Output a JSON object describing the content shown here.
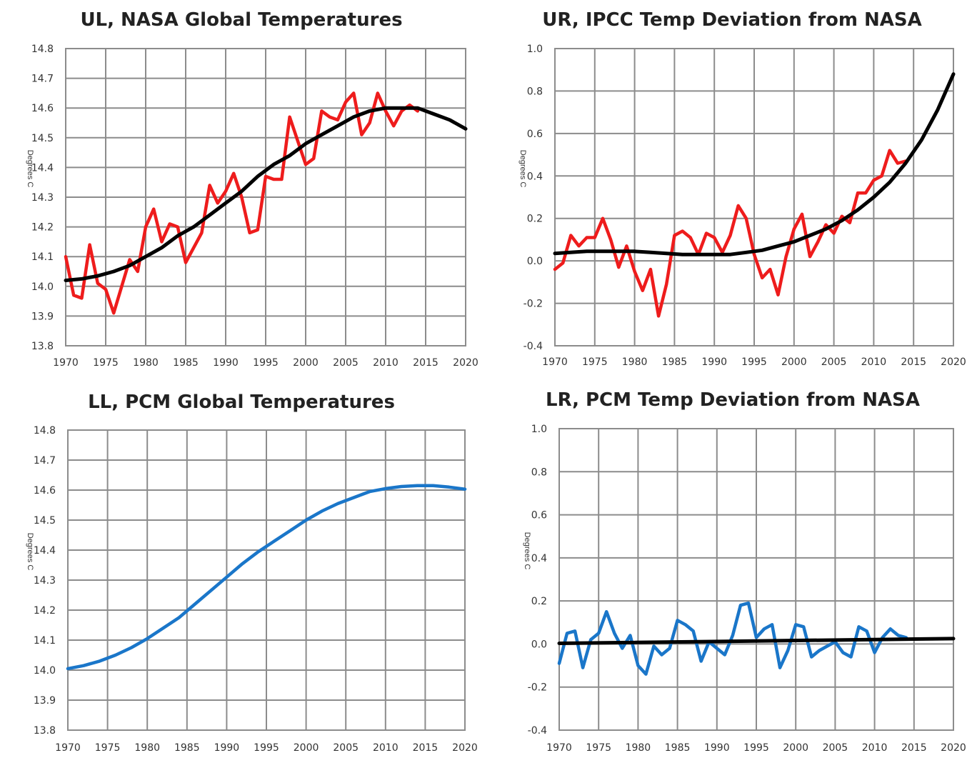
{
  "chart_data": [
    {
      "type": "line",
      "title": "UL, NASA Global Temperatures",
      "ylabel": "Degrees C",
      "xlim": [
        1970,
        2020
      ],
      "ylim": [
        13.8,
        14.8
      ],
      "x_ticks": [
        "1970",
        "1975",
        "1980",
        "1985",
        "1990",
        "1995",
        "2000",
        "2005",
        "2010",
        "2015",
        "2020"
      ],
      "y_ticks": [
        "14.8",
        "14.7",
        "14.6",
        "14.5",
        "14.4",
        "14.3",
        "14.2",
        "14.1",
        "14.0",
        "13.9",
        "13.8"
      ],
      "grid": true,
      "series": [
        {
          "color": "#ee1c1c",
          "x": [
            1970,
            1971,
            1972,
            1973,
            1974,
            1975,
            1976,
            1977,
            1978,
            1979,
            1980,
            1981,
            1982,
            1983,
            1984,
            1985,
            1986,
            1987,
            1988,
            1989,
            1990,
            1991,
            1992,
            1993,
            1994,
            1995,
            1996,
            1997,
            1998,
            1999,
            2000,
            2001,
            2002,
            2003,
            2004,
            2005,
            2006,
            2007,
            2008,
            2009,
            2010,
            2011,
            2012,
            2013,
            2014
          ],
          "y": [
            14.1,
            13.97,
            13.96,
            14.14,
            14.01,
            13.99,
            13.91,
            14.0,
            14.09,
            14.05,
            14.2,
            14.26,
            14.15,
            14.21,
            14.2,
            14.08,
            14.13,
            14.18,
            14.34,
            14.28,
            14.32,
            14.38,
            14.3,
            14.18,
            14.19,
            14.37,
            14.36,
            14.36,
            14.57,
            14.49,
            14.41,
            14.43,
            14.59,
            14.57,
            14.56,
            14.62,
            14.65,
            14.51,
            14.55,
            14.65,
            14.59,
            14.54,
            14.59,
            14.61,
            14.59
          ]
        },
        {
          "color": "#000000",
          "x": [
            1970,
            1972,
            1974,
            1976,
            1978,
            1980,
            1982,
            1984,
            1986,
            1988,
            1990,
            1992,
            1994,
            1996,
            1998,
            2000,
            2002,
            2004,
            2006,
            2008,
            2010,
            2012,
            2014,
            2016,
            2018,
            2020
          ],
          "y": [
            14.02,
            14.025,
            14.035,
            14.05,
            14.07,
            14.1,
            14.13,
            14.17,
            14.2,
            14.24,
            14.28,
            14.32,
            14.37,
            14.41,
            14.44,
            14.48,
            14.51,
            14.54,
            14.57,
            14.59,
            14.6,
            14.6,
            14.6,
            14.58,
            14.56,
            14.53
          ]
        }
      ]
    },
    {
      "type": "line",
      "title": "UR, IPCC Temp Deviation from NASA",
      "ylabel": "Degrees C",
      "xlim": [
        1970,
        2020
      ],
      "ylim": [
        -0.4,
        1.0
      ],
      "x_ticks": [
        "1970",
        "1975",
        "1980",
        "1985",
        "1990",
        "1995",
        "2000",
        "2005",
        "2010",
        "2015",
        "2020"
      ],
      "y_ticks": [
        "1.0",
        "0.8",
        "0.6",
        "0.4",
        "0.2",
        "0.0",
        "-0.2",
        "-0.4"
      ],
      "grid": true,
      "series": [
        {
          "color": "#ee1c1c",
          "x": [
            1970,
            1971,
            1972,
            1973,
            1974,
            1975,
            1976,
            1977,
            1978,
            1979,
            1980,
            1981,
            1982,
            1983,
            1984,
            1985,
            1986,
            1987,
            1988,
            1989,
            1990,
            1991,
            1992,
            1993,
            1994,
            1995,
            1996,
            1997,
            1998,
            1999,
            2000,
            2001,
            2002,
            2003,
            2004,
            2005,
            2006,
            2007,
            2008,
            2009,
            2010,
            2011,
            2012,
            2013,
            2014
          ],
          "y": [
            -0.04,
            -0.01,
            0.12,
            0.07,
            0.11,
            0.11,
            0.2,
            0.1,
            -0.03,
            0.07,
            -0.05,
            -0.14,
            -0.04,
            -0.26,
            -0.11,
            0.12,
            0.14,
            0.11,
            0.03,
            0.13,
            0.11,
            0.04,
            0.12,
            0.26,
            0.2,
            0.03,
            -0.08,
            -0.04,
            -0.16,
            0.02,
            0.15,
            0.22,
            0.02,
            0.09,
            0.17,
            0.13,
            0.21,
            0.18,
            0.32,
            0.32,
            0.38,
            0.4,
            0.52,
            0.46,
            0.47
          ]
        },
        {
          "color": "#000000",
          "x": [
            1970,
            1972,
            1974,
            1976,
            1978,
            1980,
            1982,
            1984,
            1986,
            1988,
            1990,
            1992,
            1994,
            1996,
            1998,
            2000,
            2002,
            2004,
            2006,
            2008,
            2010,
            2012,
            2014,
            2016,
            2018,
            2020
          ],
          "y": [
            0.035,
            0.04,
            0.045,
            0.045,
            0.045,
            0.045,
            0.04,
            0.035,
            0.03,
            0.03,
            0.03,
            0.03,
            0.04,
            0.05,
            0.07,
            0.09,
            0.12,
            0.15,
            0.19,
            0.24,
            0.3,
            0.37,
            0.46,
            0.57,
            0.71,
            0.88
          ]
        }
      ]
    },
    {
      "type": "line",
      "title": "LL, PCM Global Temperatures",
      "ylabel": "Degrees C",
      "xlim": [
        1970,
        2020
      ],
      "ylim": [
        13.8,
        14.8
      ],
      "x_ticks": [
        "1970",
        "1975",
        "1980",
        "1985",
        "1990",
        "1995",
        "2000",
        "2005",
        "2010",
        "2015",
        "2020"
      ],
      "y_ticks": [
        "14.8",
        "14.7",
        "14.6",
        "14.5",
        "14.4",
        "14.3",
        "14.2",
        "14.1",
        "14.0",
        "13.9",
        "13.8"
      ],
      "grid": true,
      "series": [
        {
          "color": "#1a76c9",
          "x": [
            1970,
            1972,
            1974,
            1976,
            1978,
            1980,
            1982,
            1984,
            1986,
            1988,
            1990,
            1992,
            1994,
            1996,
            1998,
            2000,
            2002,
            2004,
            2006,
            2008,
            2010,
            2012,
            2014,
            2016,
            2018,
            2020
          ],
          "y": [
            14.005,
            14.015,
            14.03,
            14.05,
            14.075,
            14.105,
            14.14,
            14.175,
            14.22,
            14.265,
            14.31,
            14.355,
            14.395,
            14.43,
            14.465,
            14.5,
            14.53,
            14.555,
            14.575,
            14.595,
            14.605,
            14.612,
            14.615,
            14.615,
            14.61,
            14.603
          ]
        }
      ]
    },
    {
      "type": "line",
      "title": "LR, PCM Temp Deviation from NASA",
      "ylabel": "Degrees C",
      "xlim": [
        1970,
        2020
      ],
      "ylim": [
        -0.4,
        1.0
      ],
      "x_ticks": [
        "1970",
        "1975",
        "1980",
        "1985",
        "1990",
        "1995",
        "2000",
        "2005",
        "2010",
        "2015",
        "2020"
      ],
      "y_ticks": [
        "1.0",
        "0.8",
        "0.6",
        "0.4",
        "0.2",
        "0.0",
        "-0.2",
        "-0.4"
      ],
      "grid": true,
      "series": [
        {
          "color": "#1a76c9",
          "x": [
            1970,
            1971,
            1972,
            1973,
            1974,
            1975,
            1976,
            1977,
            1978,
            1979,
            1980,
            1981,
            1982,
            1983,
            1984,
            1985,
            1986,
            1987,
            1988,
            1989,
            1990,
            1991,
            1992,
            1993,
            1994,
            1995,
            1996,
            1997,
            1998,
            1999,
            2000,
            2001,
            2002,
            2003,
            2004,
            2005,
            2006,
            2007,
            2008,
            2009,
            2010,
            2011,
            2012,
            2013,
            2014
          ],
          "y": [
            -0.09,
            0.05,
            0.06,
            -0.11,
            0.02,
            0.05,
            0.15,
            0.05,
            -0.02,
            0.04,
            -0.1,
            -0.14,
            -0.01,
            -0.05,
            -0.02,
            0.11,
            0.09,
            0.06,
            -0.08,
            0.01,
            -0.02,
            -0.05,
            0.04,
            0.18,
            0.19,
            0.03,
            0.07,
            0.09,
            -0.11,
            -0.03,
            0.09,
            0.08,
            -0.06,
            -0.03,
            -0.01,
            0.01,
            -0.04,
            -0.06,
            0.08,
            0.06,
            -0.04,
            0.03,
            0.07,
            0.04,
            0.03
          ]
        },
        {
          "color": "#000000",
          "x": [
            1970,
            2020
          ],
          "y": [
            0.003,
            0.025
          ]
        }
      ]
    }
  ]
}
